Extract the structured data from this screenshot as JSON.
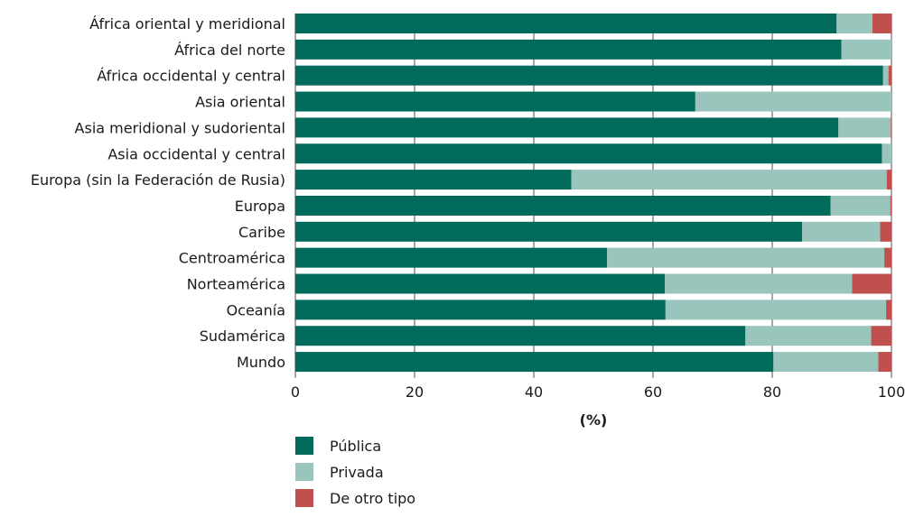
{
  "chart_data": {
    "type": "bar",
    "orientation": "horizontal",
    "stacked": true,
    "categories": [
      "África oriental y meridional",
      "África del norte",
      "África occidental y central",
      "Asia oriental",
      "Asia meridional y sudoriental",
      "Asia occidental y central",
      "Europa (sin la Federación de Rusia)",
      "Europa",
      "Caribe",
      "Centroamérica",
      "Norteamérica",
      "Oceanía",
      "Sudamérica",
      "Mundo"
    ],
    "series": [
      {
        "name": "Pública",
        "color": "#006a5b",
        "values": [
          90.8,
          91.6,
          98.6,
          67.1,
          91.1,
          98.4,
          46.3,
          89.8,
          85.0,
          52.3,
          62.0,
          62.1,
          75.5,
          80.2
        ]
      },
      {
        "name": "Privada",
        "color": "#99c5bc",
        "values": [
          6.0,
          8.4,
          0.9,
          32.9,
          8.8,
          1.6,
          52.9,
          10.0,
          13.1,
          46.5,
          31.4,
          37.0,
          21.1,
          17.6
        ]
      },
      {
        "name": "De otro tipo",
        "color": "#c0504d",
        "values": [
          3.2,
          0.0,
          0.5,
          0.0,
          0.1,
          0.0,
          0.8,
          0.2,
          1.9,
          1.2,
          6.6,
          0.9,
          3.4,
          2.2
        ]
      }
    ],
    "xlabel": "(%)",
    "ylabel": "",
    "xlim": [
      0,
      100
    ],
    "xticks": [
      0,
      20,
      40,
      60,
      80,
      100
    ],
    "grid": "vertical",
    "legend_position": "bottom"
  }
}
